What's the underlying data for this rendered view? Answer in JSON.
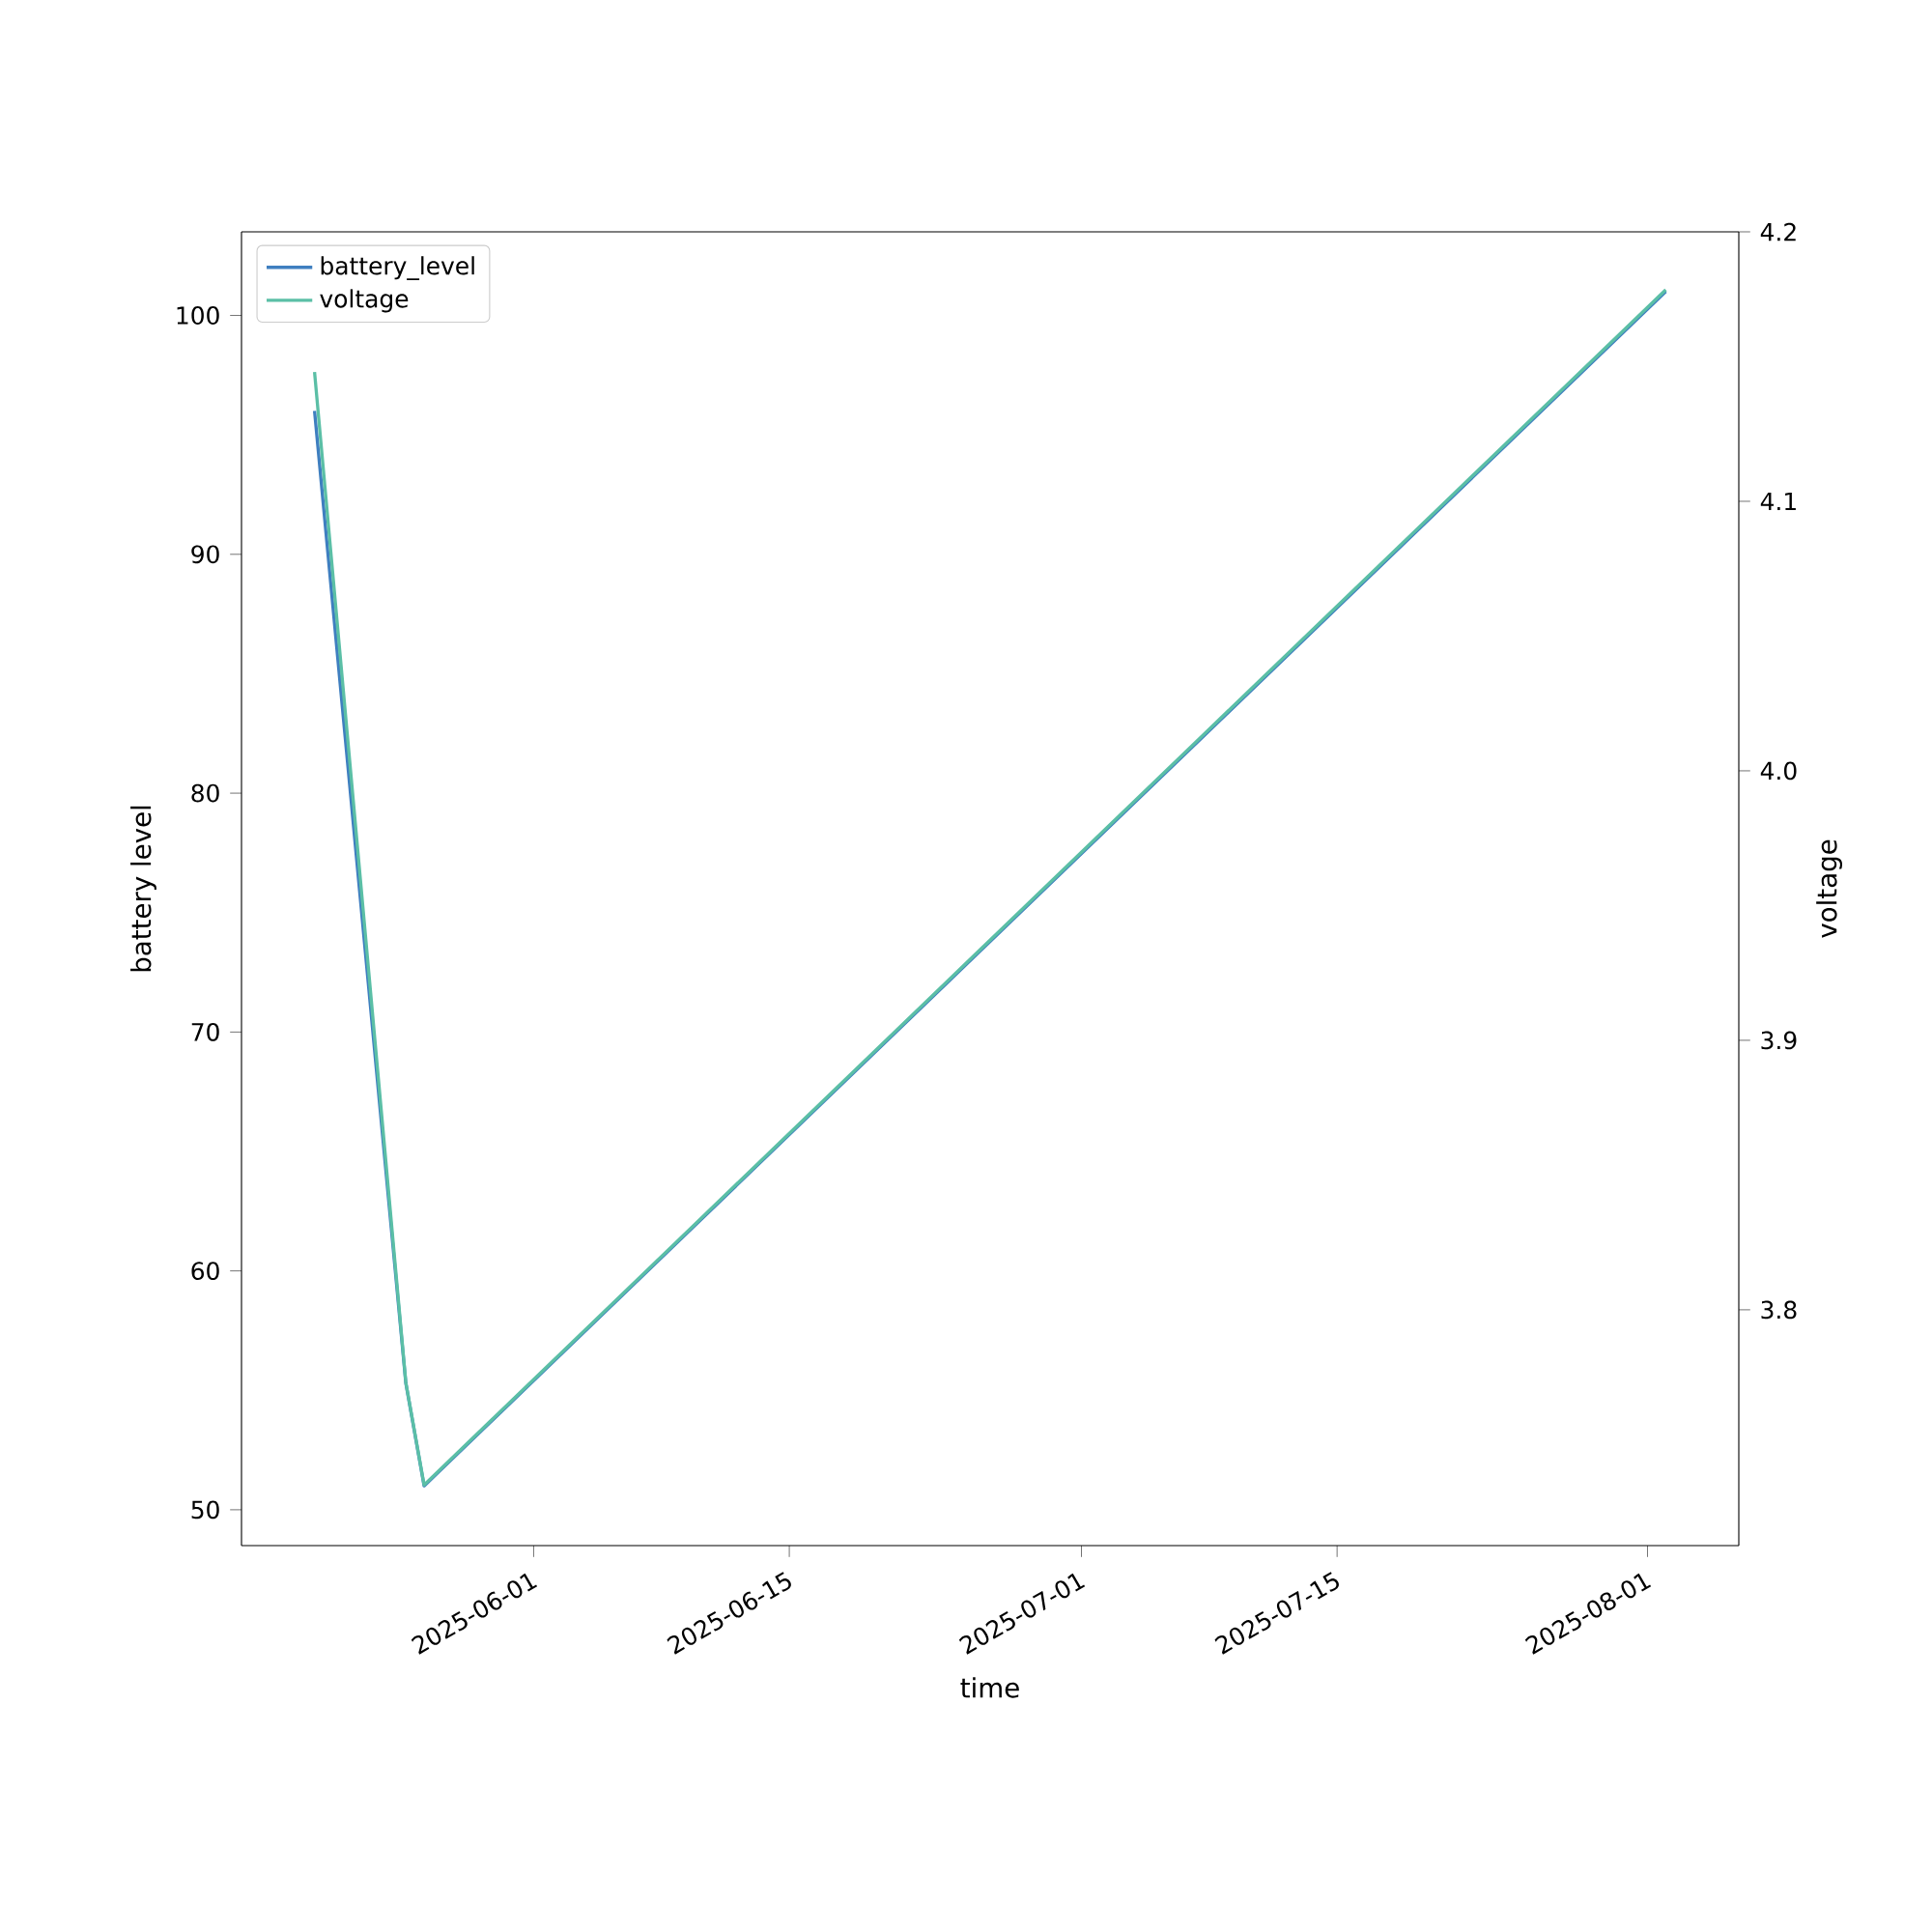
{
  "chart_data": {
    "type": "line",
    "xlabel": "time",
    "ylabel": "battery level",
    "y2label": "voltage",
    "xlim": [
      "2025-05-16",
      "2025-08-06"
    ],
    "xticks": [
      "2025-06-01",
      "2025-06-15",
      "2025-07-01",
      "2025-07-15",
      "2025-08-01"
    ],
    "ylim": [
      48.5,
      103.5
    ],
    "yticks": [
      50,
      60,
      70,
      80,
      90,
      100
    ],
    "y2lim": [
      3.7125,
      4.2
    ],
    "y2ticks": [
      3.8,
      3.9,
      {
        "value": 4,
        "label": "4.0"
      },
      4.1,
      4.2
    ],
    "legend": "top left",
    "marker": "none",
    "line_style": "solid",
    "grid": false,
    "series": [
      {
        "name": "battery_level",
        "color": "#3f7fc0",
        "x": [
          "2025-05-20",
          "2025-05-25",
          "2025-05-26",
          "2025-08-02"
        ],
        "values": [
          96,
          55.3,
          51,
          101
        ]
      },
      {
        "name": "voltage",
        "color": "#5bbfa6",
        "axis": "y2",
        "x": [
          "2025-05-20",
          "2025-05-25",
          "2025-05-26",
          "2025-08-02"
        ],
        "values": [
          4.148,
          3.773,
          3.735,
          4.1785
        ]
      }
    ]
  }
}
